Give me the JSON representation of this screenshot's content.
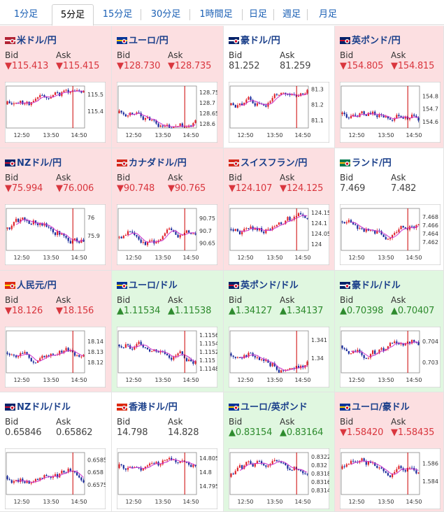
{
  "tabs": [
    {
      "label": "1分足",
      "active": false
    },
    {
      "label": "5分足",
      "active": true
    },
    {
      "label": "15分足",
      "active": false
    },
    {
      "label": "30分足",
      "active": false
    },
    {
      "label": "1時間足",
      "active": false
    },
    {
      "label": "日足",
      "active": false
    },
    {
      "label": "週足",
      "active": false
    },
    {
      "label": "月足",
      "active": false
    }
  ],
  "labels": {
    "bid": "Bid",
    "ask": "Ask"
  },
  "colors": {
    "down_bg": "#fcdfe1",
    "up_bg": "#e0f7e0",
    "flat_bg": "#ffffff",
    "down_text": "#d9363e",
    "up_text": "#2e8b2e",
    "candle_up": "#e0242c",
    "candle_down": "#1a2a9c",
    "ma": "#cc33cc",
    "current_line": "#cc0000"
  },
  "pairs": [
    {
      "name": "米ドル/円",
      "flag": "us-jp-flag-icon",
      "trend": "down",
      "bid_arrow": "▼",
      "bid": "115.413",
      "ask_arrow": "▼",
      "ask": "115.415",
      "chart_data": {
        "type": "candlestick",
        "x_ticks": [
          "12:50",
          "13:50",
          "14:50"
        ],
        "y_ticks": [
          "115.5",
          "115.4"
        ],
        "ylim": [
          115.3,
          115.55
        ]
      }
    },
    {
      "name": "ユーロ/円",
      "flag": "eu-jp-flag-icon",
      "trend": "down",
      "bid_arrow": "▼",
      "bid": "128.730",
      "ask_arrow": "▼",
      "ask": "128.735",
      "chart_data": {
        "type": "candlestick",
        "x_ticks": [
          "12:50",
          "13:50",
          "14:50"
        ],
        "y_ticks": [
          "128.75",
          "128.7",
          "128.65",
          "128.6"
        ],
        "ylim": [
          128.58,
          128.78
        ]
      }
    },
    {
      "name": "豪ドル/円",
      "flag": "au-jp-flag-icon",
      "trend": "flat",
      "bid_arrow": "",
      "bid": "81.252",
      "ask_arrow": "",
      "ask": "81.259",
      "chart_data": {
        "type": "candlestick",
        "x_ticks": [
          "12:50",
          "13:50",
          "14:50"
        ],
        "y_ticks": [
          "81.3",
          "81.2",
          "81.1"
        ],
        "ylim": [
          81.05,
          81.32
        ]
      }
    },
    {
      "name": "英ポンド/円",
      "flag": "gb-jp-flag-icon",
      "trend": "down",
      "bid_arrow": "▼",
      "bid": "154.805",
      "ask_arrow": "▼",
      "ask": "154.815",
      "chart_data": {
        "type": "candlestick",
        "x_ticks": [
          "12:50",
          "13:50",
          "14:50"
        ],
        "y_ticks": [
          "154.8",
          "154.7",
          "154.6"
        ],
        "ylim": [
          154.55,
          154.88
        ]
      }
    },
    {
      "name": "NZドル/円",
      "flag": "nz-jp-flag-icon",
      "trend": "down",
      "bid_arrow": "▼",
      "bid": "75.994",
      "ask_arrow": "▼",
      "ask": "76.006",
      "chart_data": {
        "type": "candlestick",
        "x_ticks": [
          "12:50",
          "13:50",
          "14:50"
        ],
        "y_ticks": [
          "76",
          "75.9"
        ],
        "ylim": [
          75.82,
          76.05
        ]
      }
    },
    {
      "name": "カナダドル/円",
      "flag": "ca-jp-flag-icon",
      "trend": "down",
      "bid_arrow": "▼",
      "bid": "90.748",
      "ask_arrow": "▼",
      "ask": "90.765",
      "chart_data": {
        "type": "candlestick",
        "x_ticks": [
          "12:50",
          "13:50",
          "14:50"
        ],
        "y_ticks": [
          "90.75",
          "90.7",
          "90.65"
        ],
        "ylim": [
          90.62,
          90.79
        ]
      }
    },
    {
      "name": "スイスフラン/円",
      "flag": "ch-jp-flag-icon",
      "trend": "down",
      "bid_arrow": "▼",
      "bid": "124.107",
      "ask_arrow": "▼",
      "ask": "124.125",
      "chart_data": {
        "type": "candlestick",
        "x_ticks": [
          "12:50",
          "13:50",
          "14:50"
        ],
        "y_ticks": [
          "124.15",
          "124.1",
          "124.05",
          "124"
        ],
        "ylim": [
          123.97,
          124.17
        ]
      }
    },
    {
      "name": "ランド/円",
      "flag": "za-jp-flag-icon",
      "trend": "flat",
      "bid_arrow": "",
      "bid": "7.469",
      "ask_arrow": "",
      "ask": "7.482",
      "chart_data": {
        "type": "candlestick",
        "x_ticks": [
          "12:50",
          "13:50",
          "14:50"
        ],
        "y_ticks": [
          "7.468",
          "7.466",
          "7.464",
          "7.462"
        ],
        "ylim": [
          7.46,
          7.47
        ]
      }
    },
    {
      "name": "人民元/円",
      "flag": "cn-jp-flag-icon",
      "trend": "down",
      "bid_arrow": "▼",
      "bid": "18.126",
      "ask_arrow": "▼",
      "ask": "18.156",
      "chart_data": {
        "type": "candlestick",
        "x_ticks": [
          "12:50",
          "13:50",
          "14:50"
        ],
        "y_ticks": [
          "18.14",
          "18.13",
          "18.12"
        ],
        "ylim": [
          18.11,
          18.15
        ]
      }
    },
    {
      "name": "ユーロ/ドル",
      "flag": "eu-us-flag-icon",
      "trend": "up",
      "bid_arrow": "▲",
      "bid": "1.11534",
      "ask_arrow": "▲",
      "ask": "1.11538",
      "chart_data": {
        "type": "candlestick",
        "x_ticks": [
          "12:50",
          "13:50",
          "14:50"
        ],
        "y_ticks": [
          "1.1156",
          "1.1154",
          "1.1152",
          "1.115",
          "1.1148"
        ],
        "ylim": [
          1.1147,
          1.1157
        ]
      }
    },
    {
      "name": "英ポンド/ドル",
      "flag": "gb-us-flag-icon",
      "trend": "up",
      "bid_arrow": "▲",
      "bid": "1.34127",
      "ask_arrow": "▲",
      "ask": "1.34137",
      "chart_data": {
        "type": "candlestick",
        "x_ticks": [
          "12:50",
          "13:50",
          "14:50"
        ],
        "y_ticks": [
          "1.341",
          "1.34"
        ],
        "ylim": [
          1.3392,
          1.3415
        ]
      }
    },
    {
      "name": "豪ドル/ドル",
      "flag": "au-us-flag-icon",
      "trend": "up",
      "bid_arrow": "▲",
      "bid": "0.70398",
      "ask_arrow": "▲",
      "ask": "0.70407",
      "chart_data": {
        "type": "candlestick",
        "x_ticks": [
          "12:50",
          "13:50",
          "14:50"
        ],
        "y_ticks": [
          "0.704",
          "0.703"
        ],
        "ylim": [
          0.7025,
          0.7045
        ]
      }
    },
    {
      "name": "NZドル/ドル",
      "flag": "nz-us-flag-icon",
      "trend": "flat",
      "bid_arrow": "",
      "bid": "0.65846",
      "ask_arrow": "",
      "ask": "0.65862",
      "chart_data": {
        "type": "candlestick",
        "x_ticks": [
          "12:50",
          "13:50",
          "14:50"
        ],
        "y_ticks": [
          "0.6585",
          "0.658",
          "0.6575"
        ],
        "ylim": [
          0.6571,
          0.6588
        ]
      }
    },
    {
      "name": "香港ドル/円",
      "flag": "hk-jp-flag-icon",
      "trend": "flat",
      "bid_arrow": "",
      "bid": "14.798",
      "ask_arrow": "",
      "ask": "14.828",
      "chart_data": {
        "type": "candlestick",
        "x_ticks": [
          "12:50",
          "13:50",
          "14:50"
        ],
        "y_ticks": [
          "14.805",
          "14.8",
          "14.795"
        ],
        "ylim": [
          14.792,
          14.807
        ]
      }
    },
    {
      "name": "ユーロ/英ポンド",
      "flag": "eu-gb-flag-icon",
      "trend": "up",
      "bid_arrow": "▲",
      "bid": "0.83154",
      "ask_arrow": "▲",
      "ask": "0.83164",
      "chart_data": {
        "type": "candlestick",
        "x_ticks": [
          "12:50",
          "13:50",
          "14:50"
        ],
        "y_ticks": [
          "0.8322",
          "0.832",
          "0.8318",
          "0.8316",
          "0.8314"
        ],
        "ylim": [
          0.8313,
          0.8323
        ]
      }
    },
    {
      "name": "ユーロ/豪ドル",
      "flag": "eu-au-flag-icon",
      "trend": "down",
      "bid_arrow": "▼",
      "bid": "1.58420",
      "ask_arrow": "▼",
      "ask": "1.58435",
      "chart_data": {
        "type": "candlestick",
        "x_ticks": [
          "12:50",
          "13:50",
          "14:50"
        ],
        "y_ticks": [
          "1.586",
          "1.584"
        ],
        "ylim": [
          1.5825,
          1.5872
        ]
      }
    }
  ]
}
